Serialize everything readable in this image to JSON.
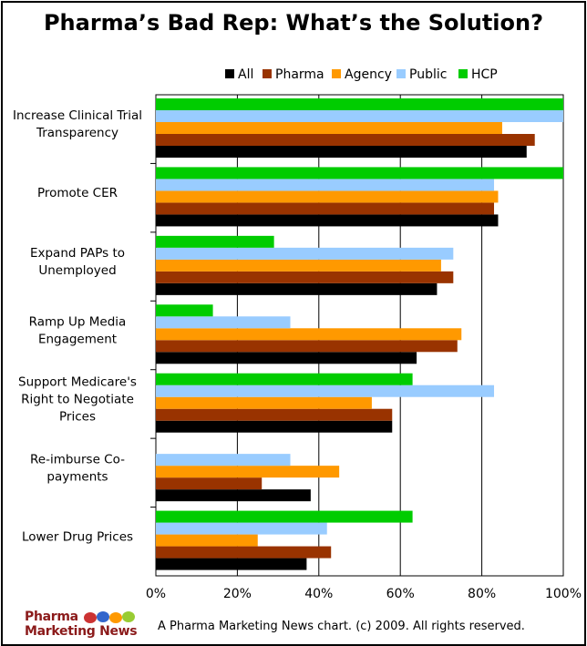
{
  "chart_data": {
    "type": "bar",
    "orientation": "horizontal",
    "title": "Pharma’s Bad Rep: What’s the Solution?",
    "categories": [
      [
        "Increase Clinical Trial",
        "Transparency"
      ],
      [
        "Promote CER"
      ],
      [
        "Expand PAPs to",
        "Unemployed"
      ],
      [
        "Ramp Up Media",
        "Engagement"
      ],
      [
        "Support Medicare's",
        "Right to Negotiate",
        "Prices"
      ],
      [
        "Re-imburse Co-",
        "payments"
      ],
      [
        "Lower Drug Prices"
      ]
    ],
    "series": [
      {
        "name": "All",
        "color": "#000000",
        "values": [
          91,
          84,
          69,
          64,
          58,
          38,
          37
        ]
      },
      {
        "name": "Pharma",
        "color": "#993300",
        "values": [
          93,
          83,
          73,
          74,
          58,
          26,
          43
        ]
      },
      {
        "name": "Agency",
        "color": "#ff9900",
        "values": [
          85,
          84,
          70,
          75,
          53,
          45,
          25
        ]
      },
      {
        "name": "Public",
        "color": "#99ccff",
        "values": [
          100,
          83,
          73,
          33,
          83,
          33,
          42
        ]
      },
      {
        "name": "HCP",
        "color": "#00cc00",
        "values": [
          100,
          100,
          29,
          14,
          63,
          0,
          63
        ]
      }
    ],
    "xlim": [
      0,
      100
    ],
    "xticks": [
      "0%",
      "20%",
      "40%",
      "60%",
      "80%",
      "100%"
    ],
    "xlabel": "",
    "ylabel": "",
    "legend_position": "top",
    "grid": true
  },
  "footer": {
    "credit": "A Pharma Marketing News chart. (c) 2009. All rights reserved.",
    "logo_line1": "Pharma",
    "logo_line2": "Marketing News"
  }
}
